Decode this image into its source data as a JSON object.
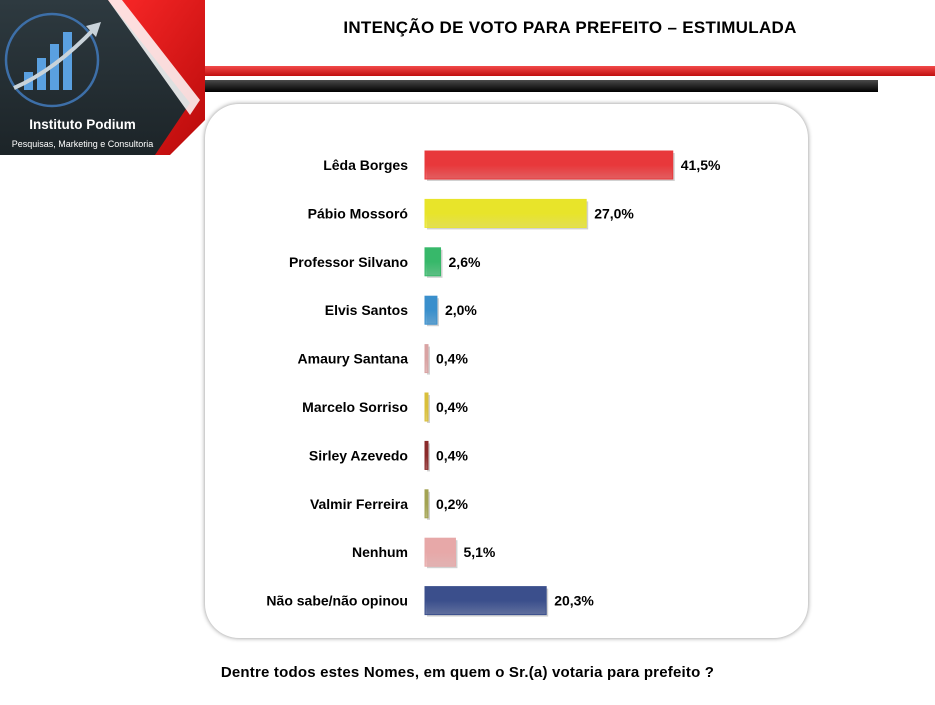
{
  "brand": {
    "name": "Instituto Podium",
    "tagline": "Pesquisas, Marketing e Consultoria"
  },
  "header": {
    "title": "INTENÇÃO DE VOTO PARA PREFEITO – ESTIMULADA"
  },
  "footer": {
    "question": "Dentre todos estes Nomes, em quem o Sr.(a) votaria para prefeito ?"
  },
  "colors": {
    "brand_red": "#e31b1b",
    "brand_dark": "#263238"
  },
  "chart_data": {
    "type": "bar",
    "orientation": "horizontal",
    "categories": [
      "Lêda Borges",
      "Pábio Mossoró",
      "Professor Silvano",
      "Elvis Santos",
      "Amaury Santana",
      "Marcelo Sorriso",
      "Sirley Azevedo",
      "Valmir Ferreira",
      "Nenhum",
      "Não sabe/não opinou"
    ],
    "values": [
      41.5,
      27.0,
      2.6,
      2.0,
      0.4,
      0.4,
      0.4,
      0.2,
      5.1,
      20.3
    ],
    "value_labels": [
      "41,5%",
      "27,0%",
      "2,6%",
      "2,0%",
      "0,4%",
      "0,4%",
      "0,4%",
      "0,2%",
      "5,1%",
      "20,3%"
    ],
    "colors": [
      "#e8383b",
      "#e8e42a",
      "#37b86a",
      "#3a8fcc",
      "#d9a3a3",
      "#d9bf3a",
      "#8a2a2a",
      "#a3a352",
      "#e7a8a8",
      "#3b4f8c"
    ],
    "unit": "%",
    "grid": false,
    "legend": "none"
  }
}
